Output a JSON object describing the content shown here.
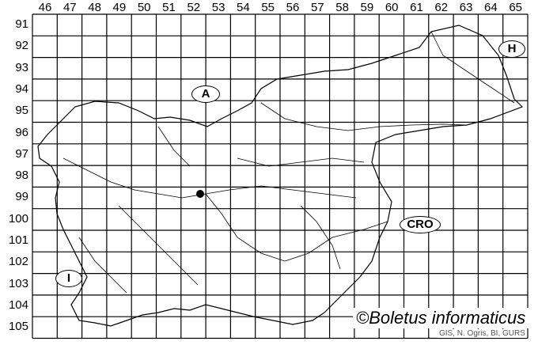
{
  "columns": [
    "46",
    "47",
    "48",
    "49",
    "50",
    "51",
    "52",
    "53",
    "54",
    "55",
    "56",
    "57",
    "58",
    "59",
    "60",
    "61",
    "62",
    "63",
    "64",
    "65"
  ],
  "rows": [
    "91",
    "92",
    "93",
    "94",
    "95",
    "96",
    "97",
    "98",
    "99",
    "100",
    "101",
    "102",
    "103",
    "104",
    "105"
  ],
  "countries": {
    "austria": "A",
    "hungary": "H",
    "croatia": "CRO",
    "italy": "I"
  },
  "credit": "©Boletus informaticus",
  "source": "GIS, N. Ogris, BI, GURS",
  "record_marker_color": "#000000"
}
